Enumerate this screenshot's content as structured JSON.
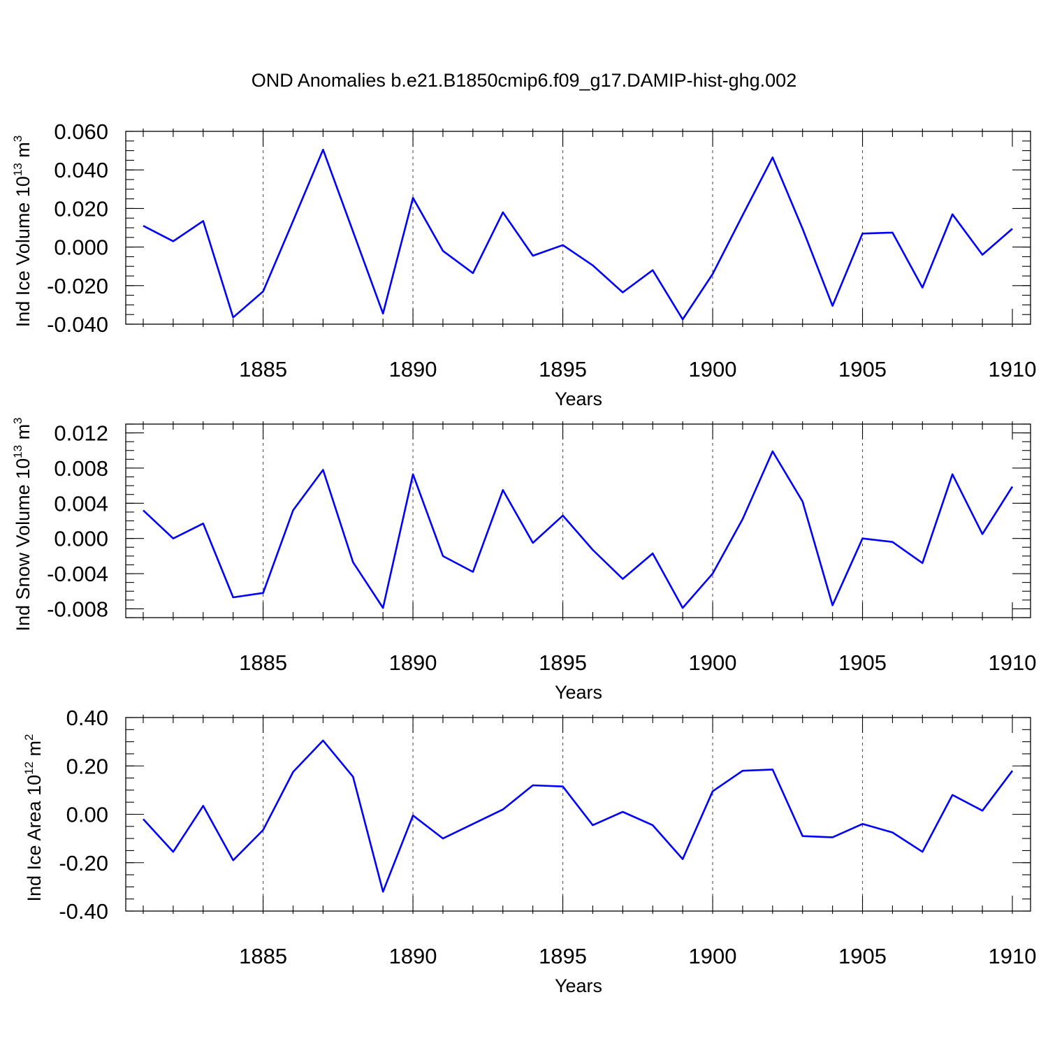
{
  "chart_data": [
    {
      "type": "line",
      "title": "OND Anomalies b.e21.B1850cmip6.f09_g17.DAMIP-hist-ghg.002",
      "xlabel": "Years",
      "ylabel": "Ind Ice Volume 10",
      "ylabel_exp": "13",
      "ylabel_unit": " m",
      "ylabel_unit_exp": "3",
      "xlim": [
        1881,
        1910
      ],
      "ylim": [
        -0.04,
        0.06
      ],
      "x_tick_labels": [
        "1885",
        "1890",
        "1895",
        "1900",
        "1905",
        "1910"
      ],
      "y_tick_labels": [
        "-0.040",
        "-0.020",
        "0.000",
        "0.020",
        "0.040",
        "0.060"
      ],
      "grid": "dashed vertical at x major ticks",
      "color": "#0000ff",
      "x": [
        1881,
        1882,
        1883,
        1884,
        1885,
        1886,
        1887,
        1888,
        1889,
        1890,
        1891,
        1892,
        1893,
        1894,
        1895,
        1896,
        1897,
        1898,
        1899,
        1900,
        1901,
        1902,
        1903,
        1904,
        1905,
        1906,
        1907,
        1908,
        1909,
        1910
      ],
      "values": [
        0.011,
        0.003,
        0.0135,
        -0.0365,
        -0.023,
        0.0135,
        0.0505,
        0.008,
        -0.0345,
        0.0255,
        -0.002,
        -0.0135,
        0.018,
        -0.0045,
        0.001,
        -0.0095,
        -0.0235,
        -0.012,
        -0.0375,
        -0.014,
        0.0165,
        0.0465,
        0.0095,
        -0.0305,
        0.007,
        0.0075,
        -0.021,
        0.017,
        -0.004,
        0.0095
      ]
    },
    {
      "type": "line",
      "xlabel": "Years",
      "ylabel": "Ind Snow Volume 10",
      "ylabel_exp": "13",
      "ylabel_unit": " m",
      "ylabel_unit_exp": "3",
      "xlim": [
        1881,
        1910
      ],
      "ylim": [
        -0.009,
        0.013
      ],
      "x_tick_labels": [
        "1885",
        "1890",
        "1895",
        "1900",
        "1905",
        "1910"
      ],
      "y_tick_labels": [
        "-0.008",
        "-0.004",
        "0.000",
        "0.004",
        "0.008",
        "0.012"
      ],
      "grid": "dashed vertical at x major ticks",
      "color": "#0000ff",
      "x": [
        1881,
        1882,
        1883,
        1884,
        1885,
        1886,
        1887,
        1888,
        1889,
        1890,
        1891,
        1892,
        1893,
        1894,
        1895,
        1896,
        1897,
        1898,
        1899,
        1900,
        1901,
        1902,
        1903,
        1904,
        1905,
        1906,
        1907,
        1908,
        1909,
        1910
      ],
      "values": [
        0.0032,
        0.0,
        0.0017,
        -0.0067,
        -0.0062,
        0.0032,
        0.0078,
        -0.0027,
        -0.0079,
        0.0073,
        -0.002,
        -0.0038,
        0.0055,
        -0.0005,
        0.0026,
        -0.0013,
        -0.0046,
        -0.0017,
        -0.0079,
        -0.004,
        0.0022,
        0.0099,
        0.0042,
        -0.0076,
        0.0,
        -0.0004,
        -0.0028,
        0.0073,
        0.0005,
        0.0059
      ]
    },
    {
      "type": "line",
      "xlabel": "Years",
      "ylabel": "Ind Ice Area 10",
      "ylabel_exp": "12",
      "ylabel_unit": " m",
      "ylabel_unit_exp": "2",
      "xlim": [
        1881,
        1910
      ],
      "ylim": [
        -0.4,
        0.4
      ],
      "x_tick_labels": [
        "1885",
        "1890",
        "1895",
        "1900",
        "1905",
        "1910"
      ],
      "y_tick_labels": [
        "-0.40",
        "-0.20",
        "0.00",
        "0.20",
        "0.40"
      ],
      "grid": "dashed vertical at x major ticks",
      "color": "#0000ff",
      "x": [
        1881,
        1882,
        1883,
        1884,
        1885,
        1886,
        1887,
        1888,
        1889,
        1890,
        1891,
        1892,
        1893,
        1894,
        1895,
        1896,
        1897,
        1898,
        1899,
        1900,
        1901,
        1902,
        1903,
        1904,
        1905,
        1906,
        1907,
        1908,
        1909,
        1910
      ],
      "values": [
        -0.02,
        -0.155,
        0.035,
        -0.19,
        -0.065,
        0.175,
        0.305,
        0.155,
        -0.32,
        -0.005,
        -0.1,
        -0.04,
        0.02,
        0.12,
        0.115,
        -0.045,
        0.01,
        -0.045,
        -0.185,
        0.095,
        0.18,
        0.185,
        -0.09,
        -0.095,
        -0.04,
        -0.075,
        -0.155,
        0.08,
        0.015,
        0.18
      ]
    }
  ]
}
